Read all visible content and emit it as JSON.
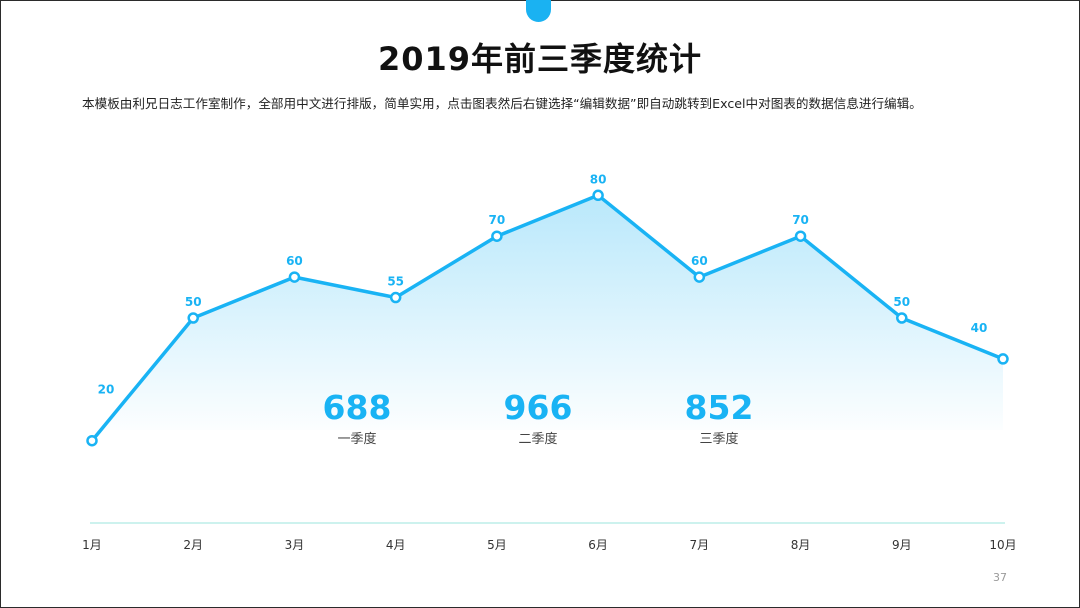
{
  "title": "2019年前三季度统计",
  "subtitle": "本模板由利兄日志工作室制作，全部用中文进行排版，简单实用，点击图表然后右键选择“编辑数据”即自动跳转到Excel中对图表的数据信息进行编辑。",
  "page_number": "37",
  "quarters": [
    {
      "value": "688",
      "label": "一季度"
    },
    {
      "value": "966",
      "label": "二季度"
    },
    {
      "value": "852",
      "label": "三季度"
    }
  ],
  "colors": {
    "line": "#19b3f4",
    "area_top": "#b9e8fb",
    "axis": "#9be6dc",
    "accent_tab": "#1ab2f2"
  },
  "chart_data": {
    "type": "area",
    "categories": [
      "1月",
      "2月",
      "3月",
      "4月",
      "5月",
      "6月",
      "7月",
      "8月",
      "9月",
      "10月"
    ],
    "values": [
      20,
      50,
      60,
      55,
      70,
      80,
      60,
      70,
      50,
      40
    ],
    "data_labels": true,
    "markers": "hollow-circle",
    "grid": false,
    "legend": "none",
    "title": "",
    "xlabel": "",
    "ylabel": ""
  }
}
